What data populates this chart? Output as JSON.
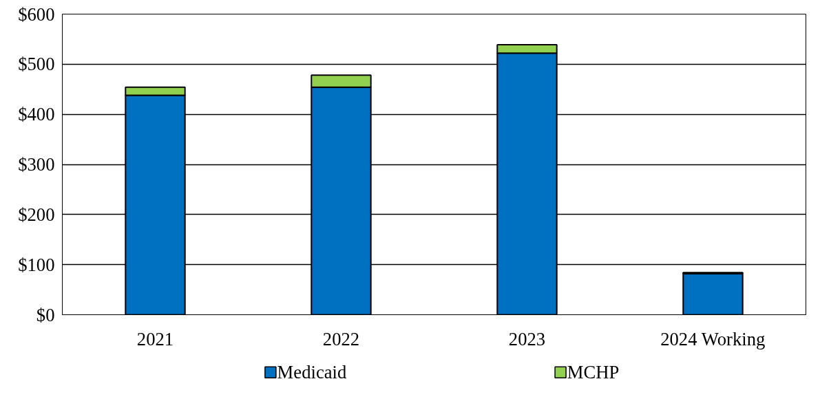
{
  "chart_data": {
    "type": "bar",
    "stacked": true,
    "categories": [
      "2021",
      "2022",
      "2023",
      "2024 Working"
    ],
    "series": [
      {
        "name": "Medicaid",
        "color": "#0070c0",
        "values": [
          438,
          454,
          522,
          82
        ]
      },
      {
        "name": "MCHP",
        "color": "#92d050",
        "values": [
          16,
          24,
          17,
          2
        ]
      }
    ],
    "ylim": [
      0,
      600
    ],
    "yticks": [
      {
        "value": 0,
        "label": "$0"
      },
      {
        "value": 100,
        "label": "$100"
      },
      {
        "value": 200,
        "label": "$200"
      },
      {
        "value": 300,
        "label": "$300"
      },
      {
        "value": 400,
        "label": "$400"
      },
      {
        "value": 500,
        "label": "$500"
      },
      {
        "value": 600,
        "label": "$600"
      }
    ],
    "grid": "y",
    "legend": "bottom"
  }
}
